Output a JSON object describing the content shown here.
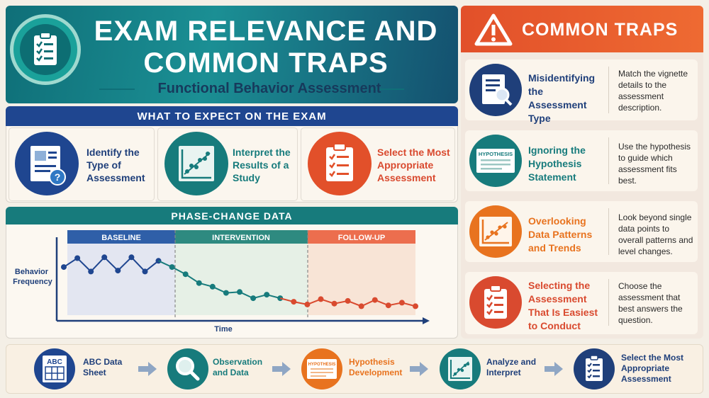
{
  "header": {
    "title": "EXAM RELEVANCE AND COMMON TRAPS",
    "subtitle": "Functional Behavior Assessment"
  },
  "colors": {
    "teal": "#177b7c",
    "navy": "#1f4690",
    "orange": "#e2502a",
    "red": "#d94a2f",
    "cream": "#fbf6ee"
  },
  "expect": {
    "title": "WHAT TO EXPECT ON THE EXAM",
    "items": [
      {
        "label": "Identify the Type of Assessment",
        "icon": "document-question-icon"
      },
      {
        "label": "Interpret the Results of a Study",
        "icon": "scatter-chart-icon"
      },
      {
        "label": "Select the Most Appropriate Assessment",
        "icon": "clipboard-checklist-icon"
      }
    ]
  },
  "phase": {
    "title": "PHASE-CHANGE DATA",
    "ylabel": "Behavior Frequency",
    "xlabel": "Time",
    "phases": [
      "BASELINE",
      "INTERVENTION",
      "FOLLOW-UP"
    ]
  },
  "chart_data": {
    "type": "line",
    "title": "PHASE-CHANGE DATA",
    "xlabel": "Time",
    "ylabel": "Behavior Frequency",
    "phases": [
      "BASELINE",
      "INTERVENTION",
      "FOLLOW-UP"
    ],
    "grid": false,
    "series": [
      {
        "name": "BASELINE",
        "color": "#1f4690",
        "x": [
          1,
          2,
          3,
          4,
          5,
          6,
          7,
          8
        ],
        "values": [
          8.4,
          9.4,
          7.9,
          9.5,
          8.0,
          9.5,
          7.9,
          9.1
        ]
      },
      {
        "name": "INTERVENTION",
        "color": "#177b7c",
        "x": [
          8,
          9,
          10,
          11,
          12,
          13,
          14,
          15,
          16,
          17
        ],
        "values": [
          9.1,
          8.4,
          7.6,
          6.6,
          6.2,
          5.5,
          5.6,
          4.9,
          5.3,
          4.9
        ]
      },
      {
        "name": "FOLLOW-UP",
        "color": "#d94a2f",
        "x": [
          17,
          18,
          19,
          20,
          21,
          22,
          23,
          24,
          25,
          26,
          27
        ],
        "values": [
          4.9,
          4.5,
          4.2,
          4.8,
          4.3,
          4.6,
          4.0,
          4.7,
          4.1,
          4.4,
          4.0
        ]
      }
    ]
  },
  "traps": {
    "title": "COMMON TRAPS",
    "items": [
      {
        "label": "Misidentifying the Assessment Type",
        "desc": "Match the vignette details to the assessment description.",
        "color": "#1f3f7a",
        "icon": "document-magnifier-icon"
      },
      {
        "label": "Ignoring the Hypothesis Statement",
        "desc": "Use the hypothesis to guide which assessment fits best.",
        "color": "#177b7c",
        "icon": "hypothesis-document-icon",
        "icon_text": "HYPOTHESIS"
      },
      {
        "label": "Overlooking Data Patterns and Trends",
        "desc": "Look beyond single data points to overall patterns and level changes.",
        "color": "#e8731f",
        "icon": "scatter-chart-icon"
      },
      {
        "label": "Selecting the Assessment That Is Easiest to Conduct",
        "desc": "Choose the assessment that best answers the question.",
        "color": "#d94a2f",
        "icon": "clipboard-checklist-icon"
      }
    ]
  },
  "process": {
    "steps": [
      {
        "label": "ABC Data Sheet",
        "icon": "abc-sheet-icon",
        "icon_text": "ABC"
      },
      {
        "label": "Observation and Data",
        "icon": "magnifier-icon"
      },
      {
        "label": "Hypothesis Development",
        "icon": "hypothesis-document-icon",
        "icon_text": "HYPOTHESIS"
      },
      {
        "label": "Analyze and Interpret",
        "icon": "scatter-chart-icon"
      },
      {
        "label": "Select the Most Appropriate Assessment",
        "icon": "clipboard-checklist-icon"
      }
    ]
  }
}
